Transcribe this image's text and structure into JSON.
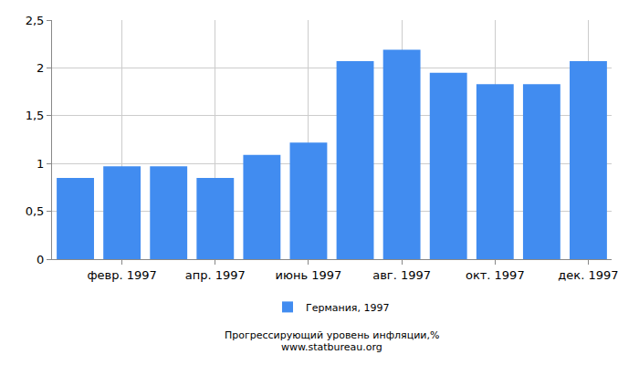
{
  "chart_data": {
    "type": "bar",
    "categories": [
      null,
      "февр. 1997",
      null,
      "апр. 1997",
      null,
      "июнь 1997",
      null,
      "авг. 1997",
      null,
      "окт. 1997",
      null,
      "дек. 1997"
    ],
    "series": [
      {
        "name": "Германия, 1997",
        "color": "#418cf0",
        "values": [
          0.85,
          0.97,
          0.97,
          0.85,
          1.09,
          1.22,
          2.07,
          2.19,
          1.95,
          1.83,
          1.83,
          2.07
        ]
      }
    ],
    "ylim": [
      0,
      2.5
    ],
    "yticks": [
      0,
      {
        "value": 0.5,
        "label": "0,5"
      },
      1,
      {
        "value": 1.5,
        "label": "1,5"
      },
      2,
      {
        "value": 2.5,
        "label": "2,5"
      }
    ],
    "grid": true,
    "legend": "bottom",
    "annotations": [
      "Прогрессирующий уровень инфляции,%",
      "www.statbureau.org"
    ]
  }
}
